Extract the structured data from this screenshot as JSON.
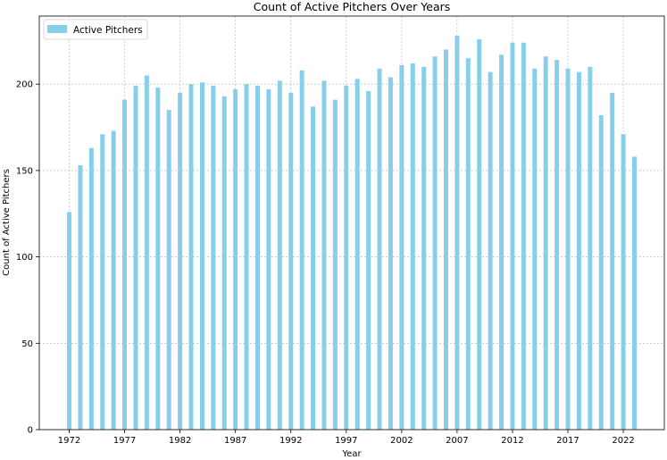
{
  "chart_data": {
    "type": "bar",
    "title": "Count of Active Pitchers Over Years",
    "xlabel": "Year",
    "ylabel": "Count of Active Pitchers",
    "x": [
      1972,
      1973,
      1974,
      1975,
      1976,
      1977,
      1978,
      1979,
      1980,
      1981,
      1982,
      1983,
      1984,
      1985,
      1986,
      1987,
      1988,
      1989,
      1990,
      1991,
      1992,
      1993,
      1994,
      1995,
      1996,
      1997,
      1998,
      1999,
      2000,
      2001,
      2002,
      2003,
      2004,
      2005,
      2006,
      2007,
      2008,
      2009,
      2010,
      2011,
      2012,
      2013,
      2014,
      2015,
      2016,
      2017,
      2018,
      2019,
      2020,
      2021,
      2022,
      2023
    ],
    "series": [
      {
        "name": "Active Pitchers",
        "values": [
          126,
          153,
          163,
          171,
          173,
          191,
          199,
          205,
          198,
          185,
          195,
          200,
          201,
          199,
          193,
          197,
          200,
          199,
          197,
          202,
          195,
          208,
          187,
          202,
          191,
          199,
          203,
          196,
          209,
          204,
          211,
          212,
          210,
          216,
          220,
          228,
          215,
          226,
          207,
          217,
          224,
          224,
          209,
          216,
          214,
          209,
          207,
          210,
          182,
          195,
          171,
          158
        ]
      }
    ],
    "xticks": [
      "1972",
      "1977",
      "1982",
      "1987",
      "1992",
      "1997",
      "2002",
      "2007",
      "2012",
      "2017",
      "2022"
    ],
    "yticks": [
      "0",
      "50",
      "100",
      "150",
      "200"
    ],
    "xlim": [
      1969.3,
      2025.7
    ],
    "ylim": [
      0,
      239.4
    ],
    "grid": true,
    "legend_position": "top-left",
    "colors": {
      "bar": "#87CEEB",
      "grid": "#b0b0b0",
      "axis": "#000000"
    }
  }
}
